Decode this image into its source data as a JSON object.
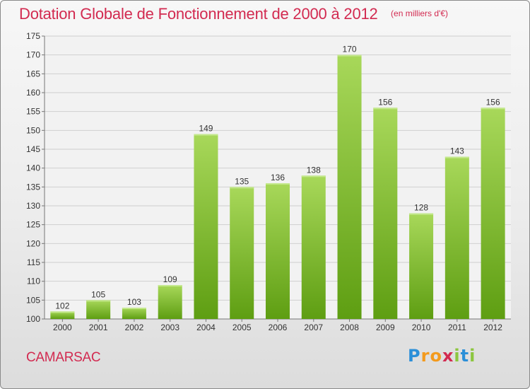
{
  "header": {
    "title": "Dotation Globale de Fonctionnement de 2000 à 2012",
    "unit": "(en milliers d'€)"
  },
  "commune": "CAMARSAC",
  "logo": {
    "text": "Proxiti",
    "letters": [
      "P",
      "r",
      "o",
      "x",
      "i",
      "t",
      "i"
    ],
    "colors": [
      "#2b8fd8",
      "#f39a1d",
      "#f39a1d",
      "#d22a50",
      "#8cc63f",
      "#2b8fd8",
      "#8cc63f"
    ]
  },
  "colors": {
    "bar_top": "#a8d85a",
    "bar_bottom": "#5e9e12",
    "title": "#d22a50",
    "text": "#333333"
  },
  "chart_data": {
    "type": "bar",
    "categories": [
      "2000",
      "2001",
      "2002",
      "2003",
      "2004",
      "2005",
      "2006",
      "2007",
      "2008",
      "2009",
      "2010",
      "2011",
      "2012"
    ],
    "values": [
      102,
      105,
      103,
      109,
      149,
      135,
      136,
      138,
      170,
      156,
      128,
      143,
      156
    ],
    "ylim": [
      100,
      175
    ],
    "yticks": [
      100,
      105,
      110,
      115,
      120,
      125,
      130,
      135,
      140,
      145,
      150,
      155,
      160,
      165,
      170,
      175
    ],
    "grid": true,
    "data_labels": true
  }
}
